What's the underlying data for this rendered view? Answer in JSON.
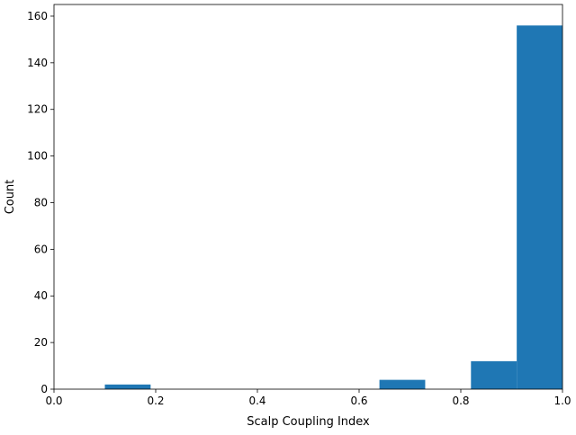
{
  "chart_data": {
    "type": "bar",
    "title": "",
    "xlabel": "Scalp Coupling Index",
    "ylabel": "Count",
    "xlim": [
      0.0,
      1.0
    ],
    "ylim": [
      0,
      165
    ],
    "xticks": [
      0.0,
      0.2,
      0.4,
      0.6,
      0.8,
      1.0
    ],
    "xtick_labels": [
      "0.0",
      "0.2",
      "0.4",
      "0.6",
      "0.8",
      "1.0"
    ],
    "yticks": [
      0,
      20,
      40,
      60,
      80,
      100,
      120,
      140,
      160
    ],
    "ytick_labels": [
      "0",
      "20",
      "40",
      "60",
      "80",
      "100",
      "120",
      "140",
      "160"
    ],
    "bins": [
      {
        "x0": 0.1,
        "x1": 0.19,
        "count": 2
      },
      {
        "x0": 0.19,
        "x1": 0.28,
        "count": 0
      },
      {
        "x0": 0.28,
        "x1": 0.37,
        "count": 0
      },
      {
        "x0": 0.37,
        "x1": 0.46,
        "count": 0
      },
      {
        "x0": 0.46,
        "x1": 0.55,
        "count": 0
      },
      {
        "x0": 0.55,
        "x1": 0.64,
        "count": 0
      },
      {
        "x0": 0.64,
        "x1": 0.73,
        "count": 4
      },
      {
        "x0": 0.73,
        "x1": 0.82,
        "count": 0
      },
      {
        "x0": 0.82,
        "x1": 0.91,
        "count": 12
      },
      {
        "x0": 0.91,
        "x1": 1.0,
        "count": 156
      }
    ],
    "bar_color": "#1f77b4",
    "grid": false,
    "legend": "none"
  }
}
